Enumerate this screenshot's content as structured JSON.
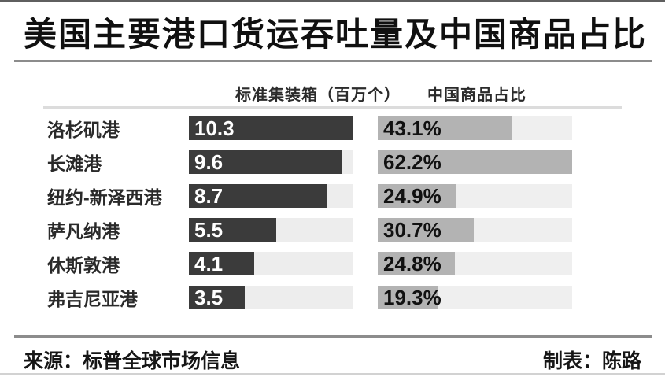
{
  "title": "美国主要港口货运吞吐量及中国商品占比",
  "columns": {
    "volume_header": "标准集装箱（百万个）",
    "share_header": "中国商品占比"
  },
  "chart_data": {
    "type": "bar",
    "orientation": "horizontal",
    "title": "美国主要港口货运吞吐量及中国商品占比",
    "categories": [
      "洛杉矶港",
      "长滩港",
      "纽约-新泽西港",
      "萨凡纳港",
      "休斯敦港",
      "弗吉尼亚港"
    ],
    "series": [
      {
        "name": "标准集装箱（百万个）",
        "values": [
          10.3,
          9.6,
          8.7,
          5.5,
          4.1,
          3.5
        ],
        "labels": [
          "10.3",
          "9.6",
          "8.7",
          "5.5",
          "4.1",
          "3.5"
        ],
        "axis_max": 10.3,
        "bar_color": "#3b3b3b",
        "track_color": "#ededed",
        "label_color": "#ffffff"
      },
      {
        "name": "中国商品占比",
        "values": [
          43.1,
          62.2,
          24.9,
          30.7,
          24.8,
          19.3
        ],
        "labels": [
          "43.1%",
          "62.2%",
          "24.9%",
          "30.7%",
          "24.8%",
          "19.3%"
        ],
        "axis_max": 62.2,
        "bar_color": "#b3b3b3",
        "track_color": "#efefef",
        "label_color": "#111111"
      }
    ],
    "grid": false,
    "legend_position": "column-headers"
  },
  "footer": {
    "source": "来源：标普全球市场信息",
    "credit": "制表：陈路"
  },
  "colors": {
    "background": "#ffffff",
    "title_text": "#101010",
    "rule_dark": "#8c8c8c",
    "rule_light": "#dcdcdc",
    "teu_bar": "#3b3b3b",
    "share_bar": "#b3b3b3",
    "bar_track": "#ededed"
  }
}
